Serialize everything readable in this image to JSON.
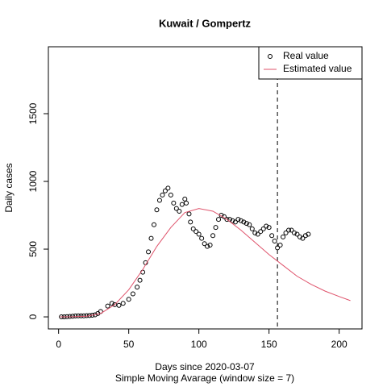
{
  "chart_data": {
    "type": "scatter",
    "title": "Kuwait / Gompertz",
    "xlabel": "Days since 2020-03-07",
    "subtitle": "Simple Moving Avarage (window size = 7)",
    "ylabel": "Daily cases",
    "xlim": [
      -7.28,
      216.28
    ],
    "ylim": [
      -89,
      1994
    ],
    "xticks": [
      0,
      50,
      100,
      150,
      200
    ],
    "yticks": [
      0,
      500,
      1000,
      1500
    ],
    "vline": 156,
    "legend": "topright",
    "series": [
      {
        "name": "Real value",
        "color": "#000000",
        "kind": "points",
        "x": [
          2,
          4,
          6,
          8,
          10,
          12,
          14,
          16,
          18,
          20,
          22,
          24,
          26,
          28,
          30,
          35,
          38,
          40,
          43,
          46,
          50,
          53,
          56,
          58,
          60,
          62,
          64,
          66,
          68,
          70,
          72,
          74,
          76,
          78,
          80,
          82,
          84,
          86,
          88,
          90,
          91,
          93,
          94,
          96,
          98,
          100,
          102,
          104,
          106,
          108,
          110,
          112,
          114,
          116,
          118,
          120,
          122,
          124,
          126,
          128,
          130,
          132,
          134,
          136,
          138,
          140,
          142,
          144,
          146,
          148,
          150,
          152,
          154,
          156,
          158,
          160,
          162,
          164,
          166,
          168,
          170,
          172,
          174,
          176,
          178
        ],
        "values": [
          0,
          0,
          2,
          3,
          5,
          7,
          8,
          8,
          8,
          9,
          10,
          12,
          15,
          25,
          40,
          80,
          100,
          90,
          85,
          100,
          130,
          170,
          220,
          270,
          330,
          400,
          480,
          580,
          680,
          790,
          860,
          900,
          930,
          950,
          900,
          840,
          800,
          780,
          830,
          870,
          840,
          760,
          700,
          650,
          630,
          610,
          580,
          540,
          520,
          530,
          600,
          660,
          720,
          750,
          740,
          720,
          720,
          710,
          700,
          720,
          710,
          700,
          690,
          680,
          650,
          620,
          610,
          630,
          650,
          670,
          660,
          600,
          560,
          510,
          530,
          590,
          620,
          640,
          640,
          620,
          610,
          590,
          580,
          600,
          610
        ]
      },
      {
        "name": "Estimated value",
        "color": "#DF536B",
        "kind": "line",
        "x": [
          1,
          10,
          20,
          30,
          40,
          50,
          60,
          70,
          80,
          90,
          100,
          110,
          120,
          130,
          140,
          150,
          160,
          170,
          180,
          190,
          200,
          208
        ],
        "values": [
          0,
          1,
          5,
          25,
          90,
          200,
          350,
          520,
          660,
          770,
          800,
          780,
          720,
          640,
          550,
          460,
          380,
          300,
          240,
          190,
          150,
          120
        ]
      }
    ]
  }
}
